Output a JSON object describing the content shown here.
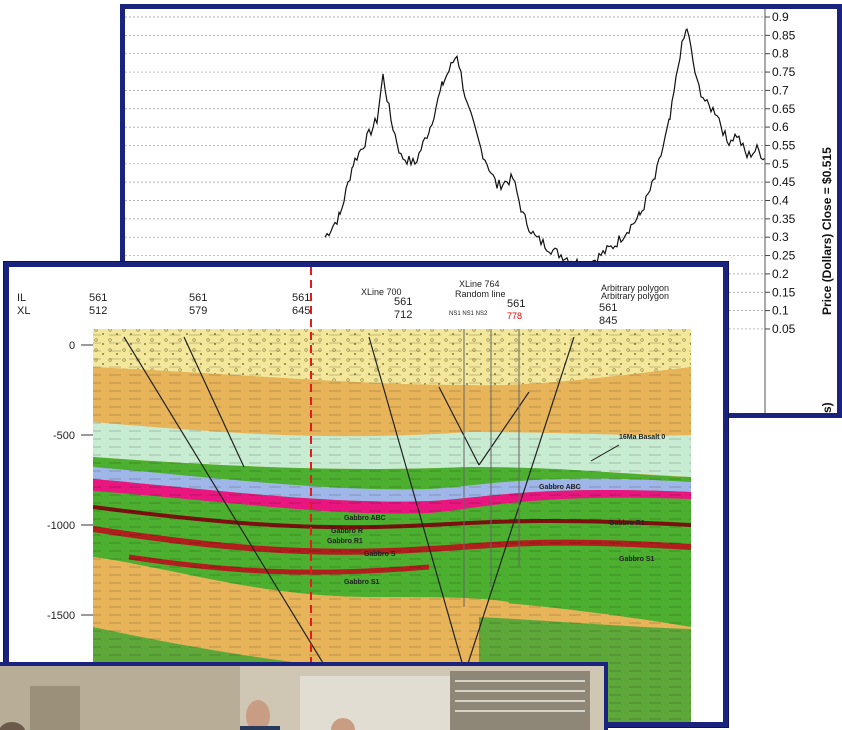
{
  "price_chart": {
    "y_ticks": [
      "0.9",
      "0.85",
      "0.8",
      "0.75",
      "0.7",
      "0.65",
      "0.6",
      "0.55",
      "0.5",
      "0.45",
      "0.4",
      "0.35",
      "0.3",
      "0.25",
      "0.2",
      "0.15",
      "0.1",
      "0.05"
    ],
    "axis_title": "Price (Dollars)  Close = $0.515",
    "axis_title_fragment": "s)",
    "line_color": "#111111",
    "grid": "dashed horizontal"
  },
  "section": {
    "header": {
      "il_label": "IL",
      "xl_label": "XL",
      "il_values": [
        "561",
        "561",
        "561",
        "561",
        "561"
      ],
      "xl_values": [
        "512",
        "579",
        "645",
        "712",
        "845"
      ],
      "xline_700": "XLine 700",
      "xline_764": "XLine 764",
      "random_line": "Random line",
      "arbitrary_1": "Arbitrary polygon",
      "arbitrary_2": "Arbitrary polygon",
      "small_labels": "NS1 NS1 NS2",
      "red_marker": "778"
    },
    "y_ticks": [
      "0",
      "-500",
      "-1000",
      "-1500"
    ],
    "horizon_labels": [
      "16Ma Basalt 0",
      "Gabbro ABC",
      "Gabbro ABC",
      "Gabbro R",
      "Gabbro R1",
      "Gabbro R1",
      "Gabbro S",
      "Gabbro S1",
      "Gabbro S1"
    ],
    "colors": {
      "sand": "#f3e79b",
      "orange": "#e7b45a",
      "pale_green": "#c8ecd2",
      "green": "#4caf2f",
      "dark_green": "#2e7d1f",
      "magenta": "#e8167e",
      "blue": "#9fb6e8",
      "red": "#b01e1e",
      "border": "#1a237e"
    }
  },
  "photo": {
    "description_icon": "office-photo"
  }
}
